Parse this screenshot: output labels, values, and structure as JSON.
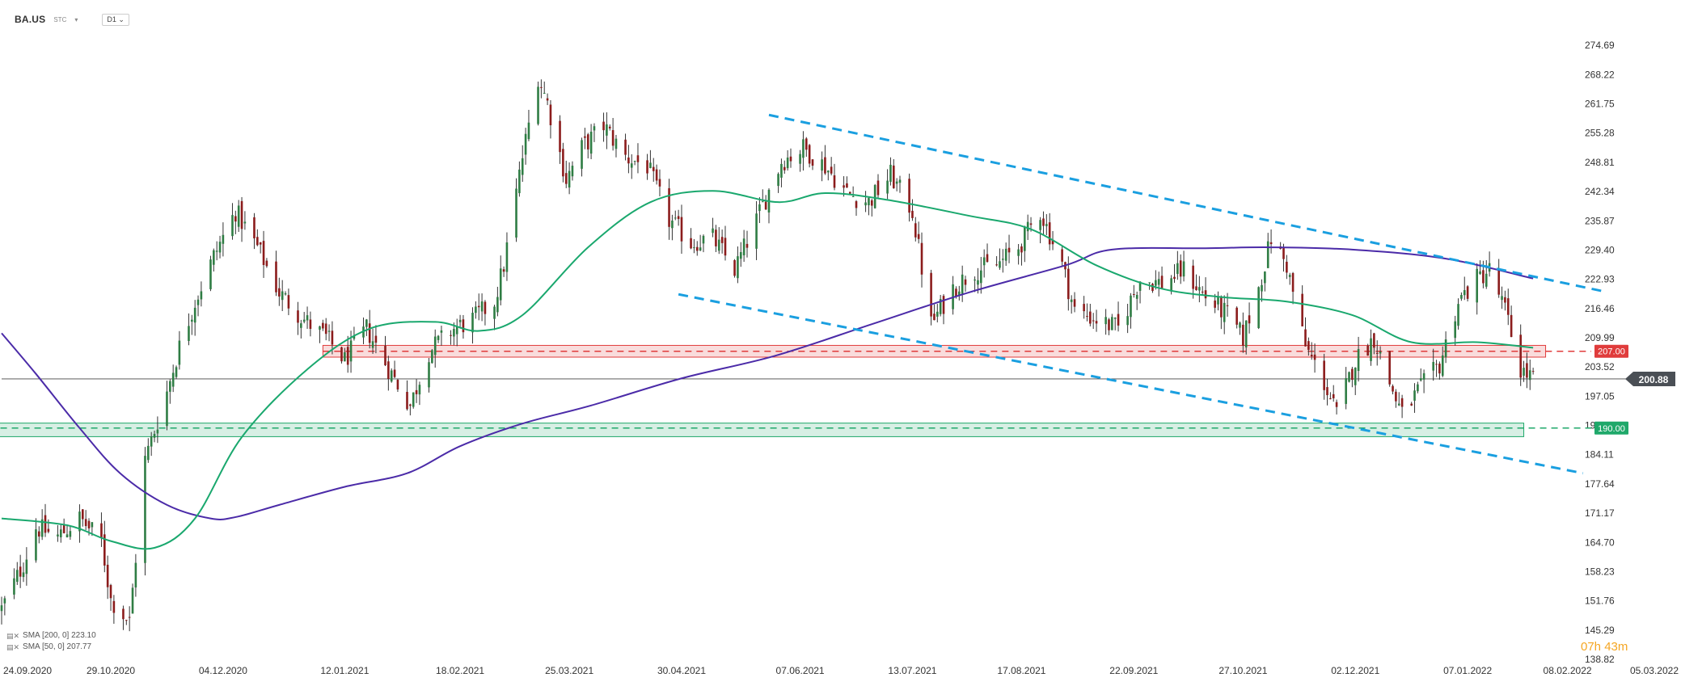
{
  "header": {
    "symbol": "BA.US",
    "subtitle": "STC",
    "timeframe": "D1"
  },
  "legend": [
    {
      "label": "SMA [200, 0] 223.10",
      "color": "#4b2ba8"
    },
    {
      "label": "SMA [50, 0] 207.77",
      "color": "#1aa86e"
    }
  ],
  "timer": {
    "hours": "07h",
    "minutes": "43m"
  },
  "colors": {
    "bull": "#2f7d44",
    "bear": "#8b1c1c",
    "sma200": "#4b2ba8",
    "sma50": "#1aa86e",
    "channel": "#1a9fe0",
    "resistance": "#e03c3c",
    "support": "#1fa86a",
    "price_tag": "#4a4f55"
  },
  "chart_data": {
    "type": "candlestick",
    "y_ticks": [
      "274.69",
      "268.22",
      "261.75",
      "255.28",
      "248.81",
      "242.34",
      "235.87",
      "229.40",
      "222.93",
      "216.46",
      "209.99",
      "203.52",
      "197.05",
      "190.58",
      "184.11",
      "177.64",
      "171.17",
      "164.70",
      "158.23",
      "151.76",
      "145.29",
      "138.82"
    ],
    "ylim": [
      138.82,
      281.16
    ],
    "x_ticks": [
      {
        "label": "24.09.2020",
        "date": "2020-09-24"
      },
      {
        "label": "29.10.2020",
        "date": "2020-10-29"
      },
      {
        "label": "04.12.2020",
        "date": "2020-12-04"
      },
      {
        "label": "12.01.2021",
        "date": "2021-01-12"
      },
      {
        "label": "18.02.2021",
        "date": "2021-02-18"
      },
      {
        "label": "25.03.2021",
        "date": "2021-03-25"
      },
      {
        "label": "30.04.2021",
        "date": "2021-04-30"
      },
      {
        "label": "07.06.2021",
        "date": "2021-06-07"
      },
      {
        "label": "13.07.2021",
        "date": "2021-07-13"
      },
      {
        "label": "17.08.2021",
        "date": "2021-08-17"
      },
      {
        "label": "22.09.2021",
        "date": "2021-09-22"
      },
      {
        "label": "27.10.2021",
        "date": "2021-10-27"
      },
      {
        "label": "02.12.2021",
        "date": "2021-12-02"
      },
      {
        "label": "07.01.2022",
        "date": "2022-01-07"
      },
      {
        "label": "08.02.2022",
        "date": "2022-02-08"
      },
      {
        "label": "05.03.2022",
        "date": "2022-03-05"
      }
    ],
    "current_price": {
      "value": 200.88,
      "label": "200.88"
    },
    "levels": [
      {
        "name": "resistance",
        "value": 207.0,
        "label": "207.00",
        "zone": [
          205.7,
          208.3
        ],
        "x_range": [
          "2021-01-05",
          "2022-02-01"
        ]
      },
      {
        "name": "support",
        "value": 190.0,
        "label": "190.00",
        "zone": [
          188.1,
          191.1
        ],
        "x_range": [
          "2020-09-20",
          "2022-01-25"
        ]
      }
    ],
    "trendlines": [
      {
        "name": "channel-upper",
        "points": [
          [
            "2021-05-28",
            259.3
          ],
          [
            "2022-02-20",
            220.2
          ]
        ]
      },
      {
        "name": "channel-lower",
        "points": [
          [
            "2021-04-29",
            219.6
          ],
          [
            "2022-02-13",
            180.0
          ]
        ]
      }
    ],
    "anchors_close": [
      [
        "2020-09-24",
        150.0
      ],
      [
        "2020-10-01",
        160.0
      ],
      [
        "2020-10-05",
        168.0
      ],
      [
        "2020-10-12",
        166.0
      ],
      [
        "2020-10-19",
        170.0
      ],
      [
        "2020-10-26",
        165.0
      ],
      [
        "2020-10-29",
        152.0
      ],
      [
        "2020-11-04",
        147.0
      ],
      [
        "2020-11-09",
        183.0
      ],
      [
        "2020-11-16",
        198.0
      ],
      [
        "2020-11-20",
        208.0
      ],
      [
        "2020-11-25",
        218.0
      ],
      [
        "2020-12-01",
        228.0
      ],
      [
        "2020-12-08",
        238.0
      ],
      [
        "2020-12-15",
        230.0
      ],
      [
        "2020-12-22",
        220.0
      ],
      [
        "2020-12-30",
        214.0
      ],
      [
        "2021-01-06",
        210.0
      ],
      [
        "2021-01-12",
        205.0
      ],
      [
        "2021-01-19",
        212.0
      ],
      [
        "2021-01-27",
        202.0
      ],
      [
        "2021-02-02",
        195.0
      ],
      [
        "2021-02-08",
        207.0
      ],
      [
        "2021-02-16",
        212.0
      ],
      [
        "2021-02-22",
        214.0
      ],
      [
        "2021-03-01",
        218.0
      ],
      [
        "2021-03-04",
        226.0
      ],
      [
        "2021-03-10",
        250.0
      ],
      [
        "2021-03-15",
        268.0
      ],
      [
        "2021-03-18",
        262.0
      ],
      [
        "2021-03-24",
        245.0
      ],
      [
        "2021-03-29",
        252.0
      ],
      [
        "2021-04-05",
        257.0
      ],
      [
        "2021-04-12",
        250.0
      ],
      [
        "2021-04-19",
        248.0
      ],
      [
        "2021-04-26",
        236.0
      ],
      [
        "2021-05-03",
        231.0
      ],
      [
        "2021-05-10",
        232.0
      ],
      [
        "2021-05-17",
        225.0
      ],
      [
        "2021-05-24",
        236.0
      ],
      [
        "2021-06-01",
        249.0
      ],
      [
        "2021-06-08",
        252.0
      ],
      [
        "2021-06-15",
        248.0
      ],
      [
        "2021-06-22",
        242.0
      ],
      [
        "2021-06-29",
        240.0
      ],
      [
        "2021-07-06",
        246.0
      ],
      [
        "2021-07-13",
        238.0
      ],
      [
        "2021-07-19",
        213.0
      ],
      [
        "2021-07-26",
        221.0
      ],
      [
        "2021-08-02",
        225.0
      ],
      [
        "2021-08-09",
        226.0
      ],
      [
        "2021-08-16",
        230.0
      ],
      [
        "2021-08-23",
        238.0
      ],
      [
        "2021-08-30",
        226.0
      ],
      [
        "2021-09-03",
        216.0
      ],
      [
        "2021-09-10",
        214.0
      ],
      [
        "2021-09-17",
        212.0
      ],
      [
        "2021-09-24",
        223.0
      ],
      [
        "2021-10-01",
        222.0
      ],
      [
        "2021-10-08",
        225.0
      ],
      [
        "2021-10-15",
        219.0
      ],
      [
        "2021-10-22",
        215.0
      ],
      [
        "2021-10-27",
        210.0
      ],
      [
        "2021-11-01",
        221.0
      ],
      [
        "2021-11-05",
        232.0
      ],
      [
        "2021-11-10",
        226.0
      ],
      [
        "2021-11-16",
        208.0
      ],
      [
        "2021-11-22",
        200.0
      ],
      [
        "2021-11-26",
        193.0
      ],
      [
        "2021-12-02",
        205.0
      ],
      [
        "2021-12-08",
        210.0
      ],
      [
        "2021-12-13",
        200.0
      ],
      [
        "2021-12-17",
        193.0
      ],
      [
        "2021-12-22",
        198.0
      ],
      [
        "2021-12-29",
        204.0
      ],
      [
        "2022-01-04",
        218.0
      ],
      [
        "2022-01-10",
        223.0
      ],
      [
        "2022-01-14",
        225.0
      ],
      [
        "2022-01-19",
        216.0
      ],
      [
        "2022-01-24",
        203.0
      ],
      [
        "2022-01-28",
        200.88
      ]
    ],
    "sma200": [
      [
        "2020-09-24",
        211.0
      ],
      [
        "2020-10-05",
        202.0
      ],
      [
        "2020-10-19",
        190.0
      ],
      [
        "2020-11-01",
        180.0
      ],
      [
        "2020-11-16",
        173.0
      ],
      [
        "2020-11-30",
        170.0
      ],
      [
        "2020-12-08",
        170.3
      ],
      [
        "2020-12-22",
        173.0
      ],
      [
        "2021-01-12",
        177.0
      ],
      [
        "2021-02-01",
        180.0
      ],
      [
        "2021-02-18",
        186.0
      ],
      [
        "2021-03-10",
        191.0
      ],
      [
        "2021-04-01",
        195.0
      ],
      [
        "2021-04-30",
        201.0
      ],
      [
        "2021-05-30",
        206.0
      ],
      [
        "2021-06-30",
        213.0
      ],
      [
        "2021-07-31",
        220.0
      ],
      [
        "2021-08-31",
        226.0
      ],
      [
        "2021-09-15",
        229.5
      ],
      [
        "2021-10-15",
        229.8
      ],
      [
        "2021-11-05",
        230.0
      ],
      [
        "2021-12-01",
        229.5
      ],
      [
        "2021-12-31",
        227.5
      ],
      [
        "2022-01-28",
        223.1
      ]
    ],
    "sma50": [
      [
        "2020-09-24",
        170.0
      ],
      [
        "2020-10-15",
        168.5
      ],
      [
        "2020-10-29",
        165.0
      ],
      [
        "2020-11-12",
        163.5
      ],
      [
        "2020-11-25",
        170.0
      ],
      [
        "2020-12-10",
        188.0
      ],
      [
        "2020-12-31",
        203.0
      ],
      [
        "2021-01-20",
        212.0
      ],
      [
        "2021-02-10",
        213.5
      ],
      [
        "2021-02-24",
        211.5
      ],
      [
        "2021-03-10",
        215.0
      ],
      [
        "2021-03-31",
        230.0
      ],
      [
        "2021-04-20",
        240.0
      ],
      [
        "2021-05-10",
        242.5
      ],
      [
        "2021-05-31",
        240.0
      ],
      [
        "2021-06-15",
        242.0
      ],
      [
        "2021-07-05",
        240.5
      ],
      [
        "2021-07-31",
        237.0
      ],
      [
        "2021-08-20",
        234.0
      ],
      [
        "2021-09-10",
        226.0
      ],
      [
        "2021-09-30",
        221.0
      ],
      [
        "2021-10-20",
        219.0
      ],
      [
        "2021-11-10",
        218.0
      ],
      [
        "2021-12-01",
        215.0
      ],
      [
        "2021-12-20",
        209.0
      ],
      [
        "2022-01-10",
        209.0
      ],
      [
        "2022-01-28",
        207.77
      ]
    ]
  }
}
